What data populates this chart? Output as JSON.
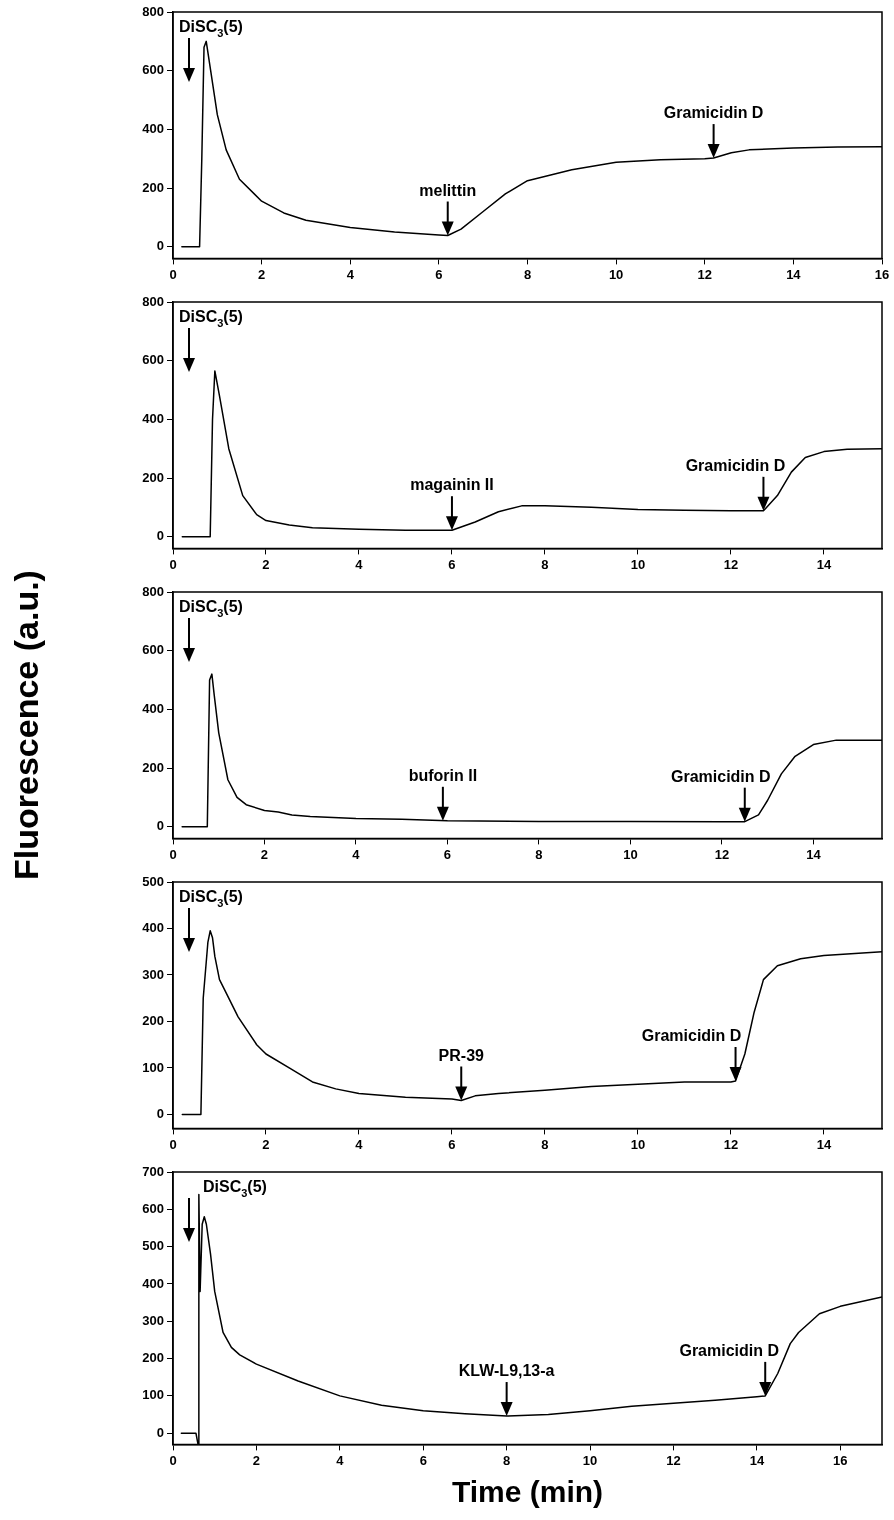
{
  "chart_data": [
    {
      "type": "line",
      "xlim": [
        0,
        16
      ],
      "ylim": [
        -40,
        800
      ],
      "xticks": [
        0,
        2,
        4,
        6,
        8,
        10,
        12,
        14,
        16
      ],
      "yticks": [
        0,
        200,
        400,
        600,
        800
      ],
      "grid": false,
      "legend": false,
      "series": [
        {
          "color": "#000000",
          "x": [
            0.2,
            0.6,
            0.65,
            0.7,
            0.75,
            0.85,
            1.0,
            1.2,
            1.5,
            2,
            2.5,
            3,
            4,
            5,
            6,
            6.2,
            6.5,
            7,
            7.5,
            8,
            9,
            10,
            11,
            12,
            12.2,
            12.6,
            13,
            14,
            15,
            16
          ],
          "values": [
            0,
            0,
            300,
            680,
            700,
            600,
            450,
            330,
            230,
            155,
            115,
            90,
            65,
            50,
            40,
            38,
            60,
            120,
            180,
            225,
            262,
            288,
            296,
            300,
            302,
            320,
            330,
            336,
            340,
            341
          ]
        }
      ],
      "annotations": [
        "DiSC$_{3}$(5)",
        {
          "text": "melittin",
          "x": 6.2,
          "y": 38
        },
        {
          "text": "Gramicidin D",
          "x": 12.2,
          "y": 302
        }
      ]
    },
    {
      "type": "line",
      "xlim": [
        0,
        15.25
      ],
      "ylim": [
        -40,
        800
      ],
      "xticks": [
        0,
        2,
        4,
        6,
        8,
        10,
        12,
        14
      ],
      "yticks": [
        0,
        200,
        400,
        600,
        800
      ],
      "grid": false,
      "legend": false,
      "series": [
        {
          "color": "#000000",
          "x": [
            0.2,
            0.8,
            0.85,
            0.9,
            1.0,
            1.2,
            1.5,
            1.8,
            2,
            2.5,
            3,
            4,
            5,
            6,
            6.5,
            7,
            7.5,
            8,
            9,
            10,
            11,
            12,
            12.7,
            13,
            13.3,
            13.6,
            14,
            14.5,
            15.25
          ],
          "values": [
            0,
            0,
            400,
            565,
            480,
            300,
            140,
            75,
            55,
            40,
            30,
            25,
            22,
            22,
            50,
            85,
            105,
            105,
            100,
            93,
            90,
            88,
            88,
            140,
            220,
            270,
            290,
            298,
            300
          ]
        }
      ],
      "annotations": [
        "DiSC$_{3}$(5)",
        {
          "text": "magainin II",
          "x": 6.0,
          "y": 22
        },
        {
          "text": "Gramicidin D",
          "x": 12.7,
          "y": 88
        }
      ]
    },
    {
      "type": "line",
      "xlim": [
        0,
        15.5
      ],
      "ylim": [
        -40,
        800
      ],
      "xticks": [
        0,
        2,
        4,
        6,
        8,
        10,
        12,
        14
      ],
      "yticks": [
        0,
        200,
        400,
        600,
        800
      ],
      "grid": false,
      "legend": false,
      "ylabel": "Fluorescence (a.u.)",
      "series": [
        {
          "color": "#000000",
          "x": [
            0.2,
            0.75,
            0.8,
            0.85,
            0.9,
            1.0,
            1.2,
            1.4,
            1.6,
            2,
            2.3,
            2.6,
            3,
            4,
            5,
            6,
            8,
            10,
            12,
            12.5,
            12.8,
            13,
            13.3,
            13.6,
            14,
            14.5,
            15.5
          ],
          "values": [
            0,
            0,
            500,
            520,
            450,
            320,
            160,
            100,
            75,
            55,
            50,
            40,
            35,
            28,
            25,
            20,
            18,
            18,
            17,
            17,
            40,
            90,
            180,
            240,
            280,
            295,
            295
          ]
        }
      ],
      "annotations": [
        "DiSC$_{3}$(5)",
        {
          "text": "buforin II",
          "x": 5.9,
          "y": 20
        },
        {
          "text": "Gramicidin D",
          "x": 12.5,
          "y": 17
        }
      ]
    },
    {
      "type": "line",
      "xlim": [
        0,
        15.25
      ],
      "ylim": [
        -30,
        500
      ],
      "xticks": [
        0,
        2,
        4,
        6,
        8,
        10,
        12,
        14
      ],
      "yticks": [
        0,
        100,
        200,
        300,
        400,
        500
      ],
      "grid": false,
      "legend": false,
      "series": [
        {
          "color": "#000000",
          "x": [
            0.2,
            0.6,
            0.65,
            0.75,
            0.8,
            0.85,
            0.9,
            1.0,
            1.1,
            1.4,
            1.8,
            2,
            2.5,
            3,
            3.5,
            4,
            5,
            6,
            6.2,
            6.5,
            7,
            8,
            9,
            10,
            11,
            12,
            12.1,
            12.3,
            12.5,
            12.7,
            13,
            13.5,
            14,
            15.25
          ],
          "values": [
            0,
            0,
            250,
            370,
            395,
            380,
            340,
            290,
            270,
            210,
            150,
            130,
            100,
            70,
            55,
            45,
            37,
            33,
            30,
            40,
            45,
            52,
            60,
            65,
            70,
            70,
            72,
            130,
            220,
            290,
            320,
            335,
            342,
            350
          ]
        }
      ],
      "annotations": [
        "DiSC$_{3}$(5)",
        {
          "text": "PR-39",
          "x": 6.2,
          "y": 30
        },
        {
          "text": "Gramicidin D",
          "x": 12.1,
          "y": 72
        }
      ]
    },
    {
      "type": "line",
      "xlim": [
        0,
        17
      ],
      "ylim": [
        -30,
        700
      ],
      "xticks": [
        0,
        2,
        4,
        6,
        8,
        10,
        12,
        14,
        16
      ],
      "yticks": [
        0,
        100,
        200,
        300,
        400,
        500,
        600,
        700
      ],
      "grid": false,
      "legend": false,
      "xlabel": "Time (min)",
      "series": [
        {
          "color": "#000000",
          "x": [
            0.2,
            0.55,
            0.6,
            0.62,
            0.65,
            0.7,
            0.75,
            0.8,
            0.9,
            1.0,
            1.2,
            1.4,
            1.6,
            2,
            3,
            4,
            5,
            6,
            7,
            8,
            9,
            10,
            11,
            12,
            13,
            14,
            14.2,
            14.5,
            14.8,
            15,
            15.5,
            16,
            17
          ],
          "values": [
            0,
            0,
            -30,
            640,
            380,
            560,
            580,
            560,
            480,
            380,
            270,
            230,
            210,
            185,
            140,
            100,
            75,
            60,
            52,
            46,
            50,
            60,
            72,
            80,
            88,
            98,
            100,
            160,
            240,
            270,
            320,
            340,
            365
          ]
        }
      ],
      "annotations": [
        "DiSC$_{3}$(5)",
        {
          "text": "KLW-L9,13-a",
          "x": 8,
          "y": 46
        },
        {
          "text": "Gramicidin D",
          "x": 14.2,
          "y": 100
        }
      ]
    }
  ]
}
